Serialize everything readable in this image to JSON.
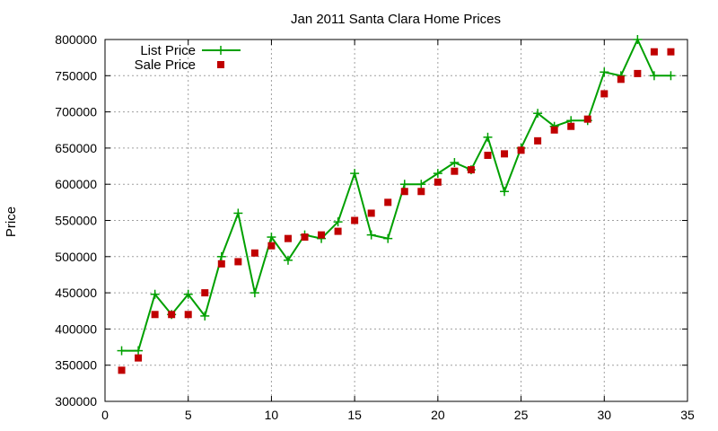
{
  "chart_data": {
    "type": "line",
    "title": "Jan 2011 Santa Clara Home Prices",
    "xlabel": "",
    "ylabel": "Price",
    "xlim": [
      0,
      35
    ],
    "ylim": [
      300000,
      800000
    ],
    "xticks": [
      "0",
      "5",
      "10",
      "15",
      "20",
      "25",
      "30",
      "35"
    ],
    "xtick_values": [
      0,
      5,
      10,
      15,
      20,
      25,
      30,
      35
    ],
    "yticks": [
      "300000",
      "350000",
      "400000",
      "450000",
      "500000",
      "550000",
      "600000",
      "650000",
      "700000",
      "750000",
      "800000"
    ],
    "ytick_values": [
      300000,
      350000,
      400000,
      450000,
      500000,
      550000,
      600000,
      650000,
      700000,
      750000,
      800000
    ],
    "grid": true,
    "legend_position": "top-left",
    "series": [
      {
        "name": "List Price",
        "style": "linespoints",
        "marker": "plus",
        "color": "#00a000",
        "x": [
          1,
          2,
          3,
          4,
          5,
          6,
          7,
          8,
          9,
          10,
          11,
          12,
          13,
          14,
          15,
          16,
          17,
          18,
          19,
          20,
          21,
          22,
          23,
          24,
          25,
          26,
          27,
          28,
          29,
          30,
          31,
          32,
          33,
          34
        ],
        "y": [
          370000,
          370000,
          448000,
          420000,
          448000,
          418000,
          500000,
          560000,
          450000,
          527000,
          495000,
          530000,
          525000,
          548000,
          615000,
          530000,
          525000,
          600000,
          600000,
          615000,
          630000,
          620000,
          665000,
          590000,
          650000,
          698000,
          680000,
          688000,
          688000,
          755000,
          750000,
          800000,
          750000,
          750000
        ]
      },
      {
        "name": "Sale Price",
        "style": "points",
        "marker": "square",
        "color": "#c00000",
        "x": [
          1,
          2,
          3,
          4,
          5,
          6,
          7,
          8,
          9,
          10,
          11,
          12,
          13,
          14,
          15,
          16,
          17,
          18,
          19,
          20,
          21,
          22,
          23,
          24,
          25,
          26,
          27,
          28,
          29,
          30,
          31,
          32,
          33,
          34
        ],
        "y": [
          343000,
          360000,
          420000,
          420000,
          420000,
          450000,
          490000,
          493000,
          505000,
          515000,
          525000,
          527000,
          530000,
          535000,
          550000,
          560000,
          575000,
          590000,
          590000,
          603000,
          618000,
          620000,
          640000,
          642000,
          647000,
          660000,
          675000,
          680000,
          690000,
          725000,
          745000,
          753000,
          783000,
          783000
        ]
      }
    ]
  }
}
